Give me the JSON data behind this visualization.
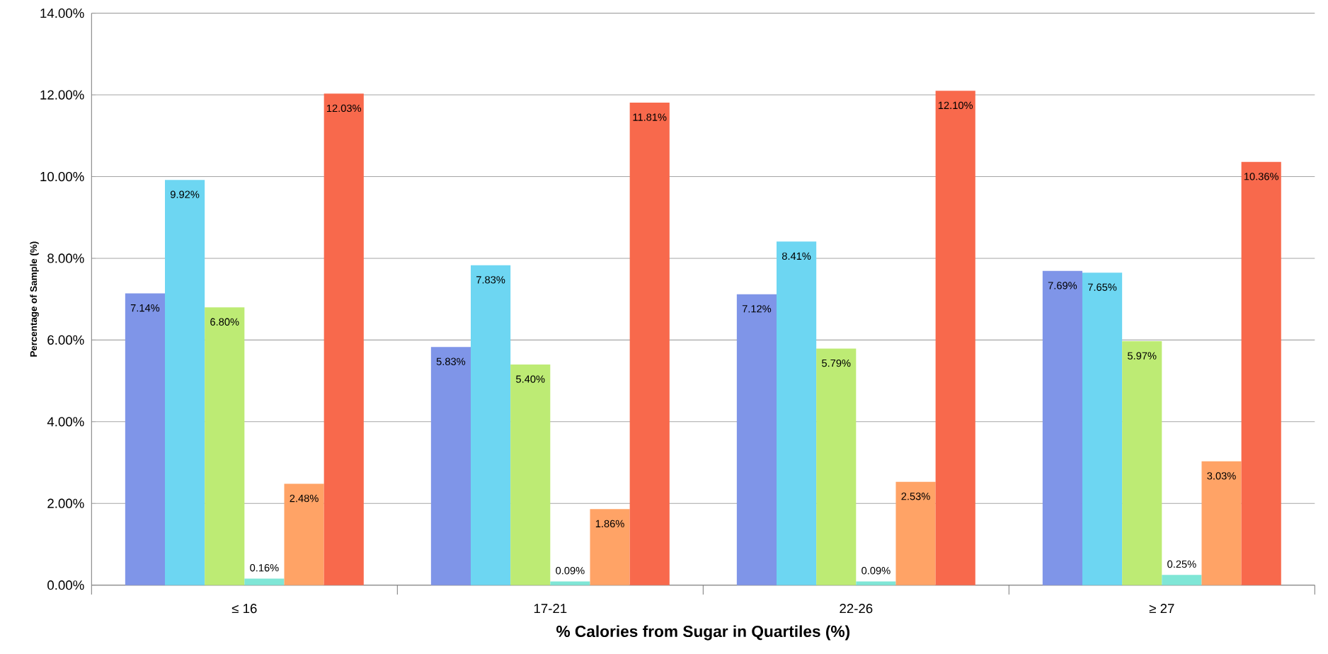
{
  "chart_data": {
    "type": "bar",
    "xlabel": "% Calories from Sugar in Quartiles (%)",
    "ylabel": "Percentage of Sample (%)",
    "categories": [
      "≤ 16",
      "17-21",
      "22-26",
      "≥ 27"
    ],
    "series": [
      {
        "color": "#7f95e8",
        "values": [
          7.14,
          5.83,
          7.12,
          7.69
        ],
        "value_labels": [
          "7.14%",
          "5.83%",
          "7.12%",
          "7.69%"
        ]
      },
      {
        "color": "#6dd6f2",
        "values": [
          9.92,
          7.83,
          8.41,
          7.65
        ],
        "value_labels": [
          "9.92%",
          "7.83%",
          "8.41%",
          "7.65%"
        ]
      },
      {
        "color": "#bdeb74",
        "values": [
          6.8,
          5.4,
          5.79,
          5.97
        ],
        "value_labels": [
          "6.80%",
          "5.40%",
          "5.79%",
          "5.97%"
        ]
      },
      {
        "color": "#7fe6d6",
        "values": [
          0.16,
          0.09,
          0.09,
          0.25
        ],
        "value_labels": [
          "0.16%",
          "0.09%",
          "0.09%",
          "0.25%"
        ]
      },
      {
        "color": "#ffa366",
        "values": [
          2.48,
          1.86,
          2.53,
          3.03
        ],
        "value_labels": [
          "2.48%",
          "1.86%",
          "2.53%",
          "3.03%"
        ]
      },
      {
        "color": "#f8694c",
        "values": [
          12.03,
          11.81,
          12.1,
          10.36
        ],
        "value_labels": [
          "12.03%",
          "11.81%",
          "12.10%",
          "10.36%"
        ]
      }
    ],
    "ylim": [
      0,
      14
    ],
    "yticks": [
      {
        "value": 0,
        "label": "0.00%"
      },
      {
        "value": 2,
        "label": "2.00%"
      },
      {
        "value": 4,
        "label": "4.00%"
      },
      {
        "value": 6,
        "label": "6.00%"
      },
      {
        "value": 8,
        "label": "8.00%"
      },
      {
        "value": 10,
        "label": "10.00%"
      },
      {
        "value": 12,
        "label": "12.00%"
      },
      {
        "value": 14,
        "label": "14.00%"
      }
    ],
    "grid": "y"
  }
}
